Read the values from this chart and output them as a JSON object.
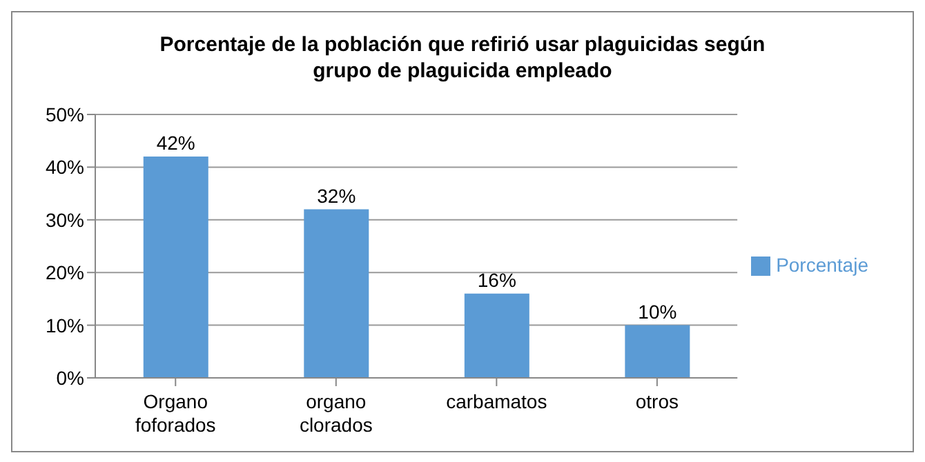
{
  "chart_data": {
    "type": "bar",
    "title": "Porcentaje de la población que refirió usar plaguicidas según grupo de plaguicida empleado",
    "categories": [
      "Organo foforados",
      "organo clorados",
      "carbamatos",
      "otros"
    ],
    "series": [
      {
        "name": "Porcentaje",
        "color": "#5b9bd5",
        "values": [
          42,
          32,
          16,
          10
        ],
        "value_labels": [
          "42%",
          "32%",
          "16%",
          "10%"
        ]
      }
    ],
    "ylim": [
      0,
      50
    ],
    "yticks": [
      {
        "value": 0,
        "label": "0%"
      },
      {
        "value": 10,
        "label": "10%"
      },
      {
        "value": 20,
        "label": "20%"
      },
      {
        "value": 30,
        "label": "30%"
      },
      {
        "value": 40,
        "label": "40%"
      },
      {
        "value": 50,
        "label": "50%"
      }
    ],
    "grid": "y",
    "legend": "right"
  }
}
